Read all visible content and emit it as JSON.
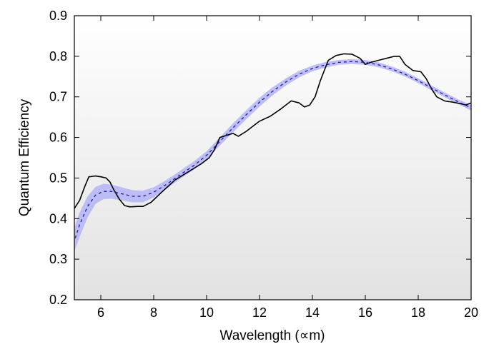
{
  "chart_data": {
    "type": "line",
    "xlabel": "Wavelength (∝m)",
    "ylabel": "Quantum Efficiency",
    "xlim": [
      5,
      20
    ],
    "ylim": [
      0.2,
      0.9
    ],
    "x_ticks": [
      "6",
      "8",
      "10",
      "12",
      "14",
      "16",
      "18",
      "20"
    ],
    "y_ticks": [
      "0.2",
      "0.3",
      "0.4",
      "0.5",
      "0.6",
      "0.7",
      "0.8",
      "0.9"
    ],
    "grid": false,
    "background": "vertical gradient, white at top to light gray at bottom",
    "series": [
      {
        "style": "solid",
        "color": "#000000",
        "points": [
          [
            4.9,
            0.41
          ],
          [
            5.0,
            0.425
          ],
          [
            5.2,
            0.445
          ],
          [
            5.4,
            0.48
          ],
          [
            5.55,
            0.503
          ],
          [
            5.8,
            0.505
          ],
          [
            6.0,
            0.503
          ],
          [
            6.2,
            0.5
          ],
          [
            6.35,
            0.49
          ],
          [
            6.5,
            0.47
          ],
          [
            6.7,
            0.448
          ],
          [
            6.9,
            0.432
          ],
          [
            7.1,
            0.429
          ],
          [
            7.4,
            0.43
          ],
          [
            7.6,
            0.43
          ],
          [
            7.9,
            0.44
          ],
          [
            8.3,
            0.465
          ],
          [
            8.8,
            0.495
          ],
          [
            9.3,
            0.515
          ],
          [
            9.8,
            0.535
          ],
          [
            10.1,
            0.55
          ],
          [
            10.3,
            0.57
          ],
          [
            10.5,
            0.6
          ],
          [
            10.8,
            0.606
          ],
          [
            11.0,
            0.61
          ],
          [
            11.2,
            0.603
          ],
          [
            11.5,
            0.615
          ],
          [
            12.0,
            0.64
          ],
          [
            12.4,
            0.652
          ],
          [
            12.8,
            0.67
          ],
          [
            13.2,
            0.69
          ],
          [
            13.5,
            0.685
          ],
          [
            13.7,
            0.675
          ],
          [
            13.9,
            0.68
          ],
          [
            14.1,
            0.7
          ],
          [
            14.3,
            0.74
          ],
          [
            14.6,
            0.79
          ],
          [
            14.9,
            0.802
          ],
          [
            15.2,
            0.806
          ],
          [
            15.5,
            0.805
          ],
          [
            15.8,
            0.795
          ],
          [
            16.0,
            0.78
          ],
          [
            16.2,
            0.785
          ],
          [
            16.5,
            0.79
          ],
          [
            16.8,
            0.795
          ],
          [
            17.1,
            0.8
          ],
          [
            17.3,
            0.8
          ],
          [
            17.5,
            0.78
          ],
          [
            17.8,
            0.765
          ],
          [
            18.1,
            0.762
          ],
          [
            18.3,
            0.745
          ],
          [
            18.5,
            0.72
          ],
          [
            18.7,
            0.7
          ],
          [
            19.0,
            0.69
          ],
          [
            19.3,
            0.687
          ],
          [
            19.6,
            0.683
          ],
          [
            19.8,
            0.68
          ],
          [
            20.0,
            0.685
          ]
        ]
      },
      {
        "style": "dashed",
        "color": "#1a1aa0",
        "points": [
          [
            4.9,
            0.325
          ],
          [
            5.2,
            0.385
          ],
          [
            5.5,
            0.43
          ],
          [
            5.8,
            0.458
          ],
          [
            6.1,
            0.467
          ],
          [
            6.4,
            0.467
          ],
          [
            6.8,
            0.461
          ],
          [
            7.2,
            0.455
          ],
          [
            7.6,
            0.455
          ],
          [
            8.0,
            0.465
          ],
          [
            8.5,
            0.485
          ],
          [
            9.0,
            0.508
          ],
          [
            9.5,
            0.53
          ],
          [
            10.0,
            0.556
          ],
          [
            10.5,
            0.59
          ],
          [
            11.0,
            0.624
          ],
          [
            11.5,
            0.656
          ],
          [
            12.0,
            0.687
          ],
          [
            12.5,
            0.714
          ],
          [
            13.0,
            0.737
          ],
          [
            13.5,
            0.756
          ],
          [
            14.0,
            0.77
          ],
          [
            14.5,
            0.779
          ],
          [
            15.0,
            0.785
          ],
          [
            15.5,
            0.787
          ],
          [
            16.0,
            0.785
          ],
          [
            16.5,
            0.779
          ],
          [
            17.0,
            0.769
          ],
          [
            17.5,
            0.756
          ],
          [
            18.0,
            0.74
          ],
          [
            18.5,
            0.722
          ],
          [
            19.0,
            0.705
          ],
          [
            19.5,
            0.688
          ],
          [
            20.0,
            0.673
          ]
        ]
      }
    ],
    "band": {
      "color": "#b4b4f6",
      "x": [
        4.9,
        5.2,
        5.5,
        5.8,
        6.1,
        6.4,
        6.8,
        7.2,
        7.6,
        8.0,
        8.5,
        9.0,
        9.5,
        10.0,
        10.5,
        11.0,
        11.5,
        12.0,
        12.5,
        13.0,
        13.5,
        14.0,
        14.5,
        15.0,
        15.5,
        16.0,
        16.5,
        17.0,
        17.5,
        18.0,
        18.5,
        19.0,
        19.5,
        20.0
      ],
      "upper": [
        0.36,
        0.415,
        0.455,
        0.478,
        0.486,
        0.484,
        0.477,
        0.47,
        0.469,
        0.477,
        0.496,
        0.518,
        0.54,
        0.566,
        0.6,
        0.635,
        0.667,
        0.698,
        0.724,
        0.746,
        0.764,
        0.777,
        0.786,
        0.791,
        0.793,
        0.791,
        0.785,
        0.775,
        0.762,
        0.746,
        0.728,
        0.711,
        0.694,
        0.68
      ],
      "lower": [
        0.3,
        0.355,
        0.403,
        0.436,
        0.448,
        0.449,
        0.445,
        0.44,
        0.44,
        0.452,
        0.474,
        0.498,
        0.52,
        0.546,
        0.58,
        0.613,
        0.645,
        0.676,
        0.704,
        0.728,
        0.748,
        0.763,
        0.772,
        0.779,
        0.781,
        0.779,
        0.773,
        0.763,
        0.75,
        0.734,
        0.716,
        0.699,
        0.682,
        0.666
      ]
    }
  }
}
